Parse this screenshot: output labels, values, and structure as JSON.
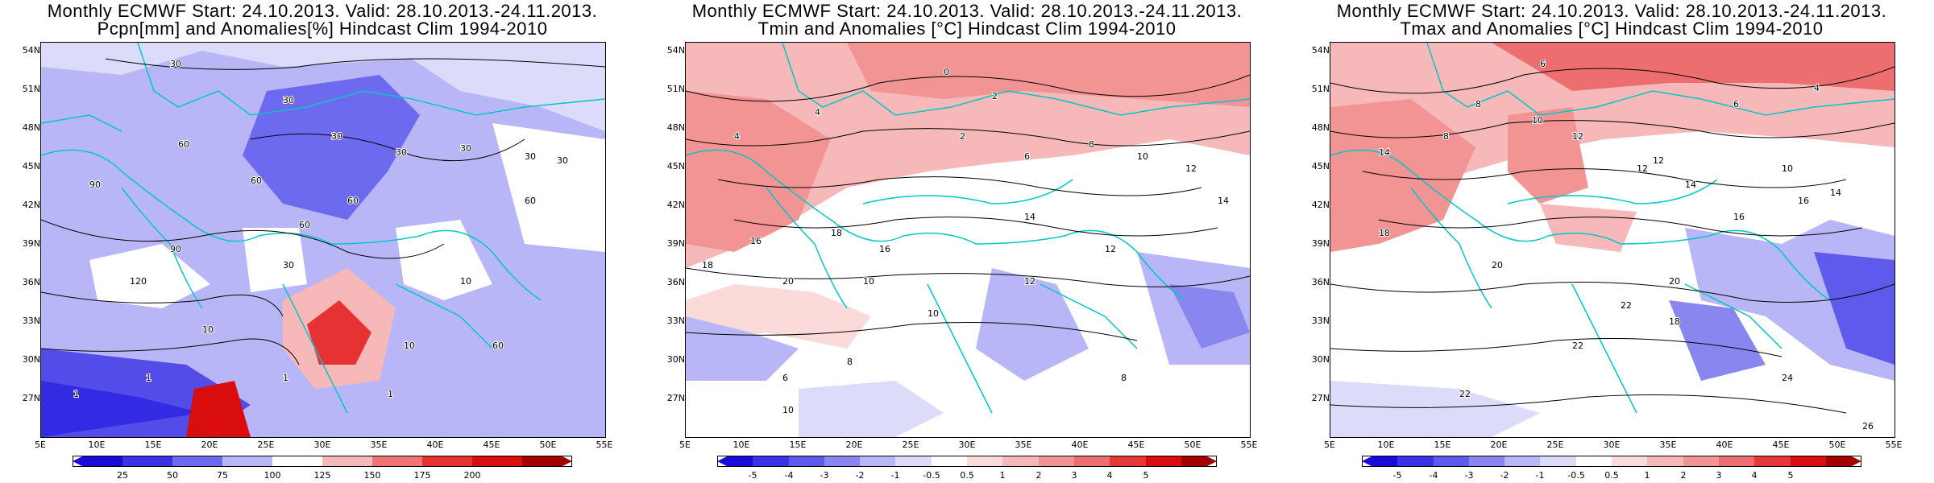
{
  "panels": [
    {
      "title_line1": "Monthly ECMWF Start: 24.10.2013. Valid: 28.10.2013.-24.11.2013.",
      "title_line2": "Pcpn[mm] and Anomalies[%] Hindcast Clim 1994-2010",
      "lat_labels": [
        "54N",
        "51N",
        "48N",
        "45N",
        "42N",
        "39N",
        "36N",
        "33N",
        "30N",
        "27N"
      ],
      "lon_labels": [
        "5E",
        "10E",
        "15E",
        "20E",
        "25E",
        "30E",
        "35E",
        "40E",
        "45E",
        "50E",
        "55E"
      ],
      "colorbar_colors": [
        "#1a0ad9",
        "#3a32e6",
        "#6e6af0",
        "#b8b6f6",
        "#ffffff",
        "#f6b8b8",
        "#f07474",
        "#e63232",
        "#d90d0d",
        "#a30000"
      ],
      "colorbar_labels": [
        "25",
        "50",
        "75",
        "100",
        "125",
        "150",
        "175",
        "200"
      ],
      "contour_labels": [
        "30",
        "30",
        "30",
        "30",
        "30",
        "30",
        "60",
        "60",
        "60",
        "60",
        "90",
        "90",
        "120",
        "30",
        "10",
        "10",
        "1",
        "1",
        "1",
        "60",
        "60",
        "10",
        "1",
        "30"
      ]
    },
    {
      "title_line1": "Monthly ECMWF Start: 24.10.2013. Valid: 28.10.2013.-24.11.2013.",
      "title_line2": "Tmin and Anomalies [°C] Hindcast Clim 1994-2010",
      "lat_labels": [
        "54N",
        "51N",
        "48N",
        "45N",
        "42N",
        "39N",
        "36N",
        "33N",
        "30N",
        "27N"
      ],
      "lon_labels": [
        "5E",
        "10E",
        "15E",
        "20E",
        "25E",
        "30E",
        "35E",
        "40E",
        "45E",
        "50E",
        "55E"
      ],
      "colorbar_colors": [
        "#1a0ad9",
        "#3a32e6",
        "#5e5aec",
        "#8a86f0",
        "#b8b6f6",
        "#dcdbfa",
        "#ffffff",
        "#fbdada",
        "#f6b8b8",
        "#f29494",
        "#ec6e6e",
        "#e63838",
        "#d90d0d",
        "#a30000"
      ],
      "colorbar_labels": [
        "-5",
        "-4",
        "-3",
        "-2",
        "-1",
        "-0.5",
        "0.5",
        "1",
        "2",
        "3",
        "4",
        "5"
      ],
      "contour_labels": [
        "0",
        "2",
        "4",
        "2",
        "4",
        "6",
        "8",
        "10",
        "12",
        "14",
        "16",
        "18",
        "20",
        "10",
        "8",
        "6",
        "12",
        "14",
        "18",
        "16",
        "10",
        "12",
        "8",
        "10"
      ]
    },
    {
      "title_line1": "Monthly ECMWF Start: 24.10.2013. Valid: 28.10.2013.-24.11.2013.",
      "title_line2": "Tmax and Anomalies [°C] Hindcast Clim 1994-2010",
      "lat_labels": [
        "54N",
        "51N",
        "48N",
        "45N",
        "42N",
        "39N",
        "36N",
        "33N",
        "30N",
        "27N"
      ],
      "lon_labels": [
        "5E",
        "10E",
        "15E",
        "20E",
        "25E",
        "30E",
        "35E",
        "40E",
        "45E",
        "50E",
        "55E"
      ],
      "colorbar_colors": [
        "#1a0ad9",
        "#3a32e6",
        "#5e5aec",
        "#8a86f0",
        "#b8b6f6",
        "#dcdbfa",
        "#ffffff",
        "#fbdada",
        "#f6b8b8",
        "#f29494",
        "#ec6e6e",
        "#e63838",
        "#d90d0d",
        "#a30000"
      ],
      "colorbar_labels": [
        "-5",
        "-4",
        "-3",
        "-2",
        "-1",
        "-0.5",
        "0.5",
        "1",
        "2",
        "3",
        "4",
        "5"
      ],
      "contour_labels": [
        "6",
        "8",
        "4",
        "6",
        "8",
        "10",
        "12",
        "14",
        "12",
        "14",
        "16",
        "18",
        "20",
        "22",
        "24",
        "20",
        "22",
        "18",
        "16",
        "14",
        "12",
        "10",
        "22",
        "26"
      ]
    }
  ],
  "colors": {
    "border": "#00c8c8",
    "contour": "#000000",
    "grid": "#7f7f7f"
  }
}
